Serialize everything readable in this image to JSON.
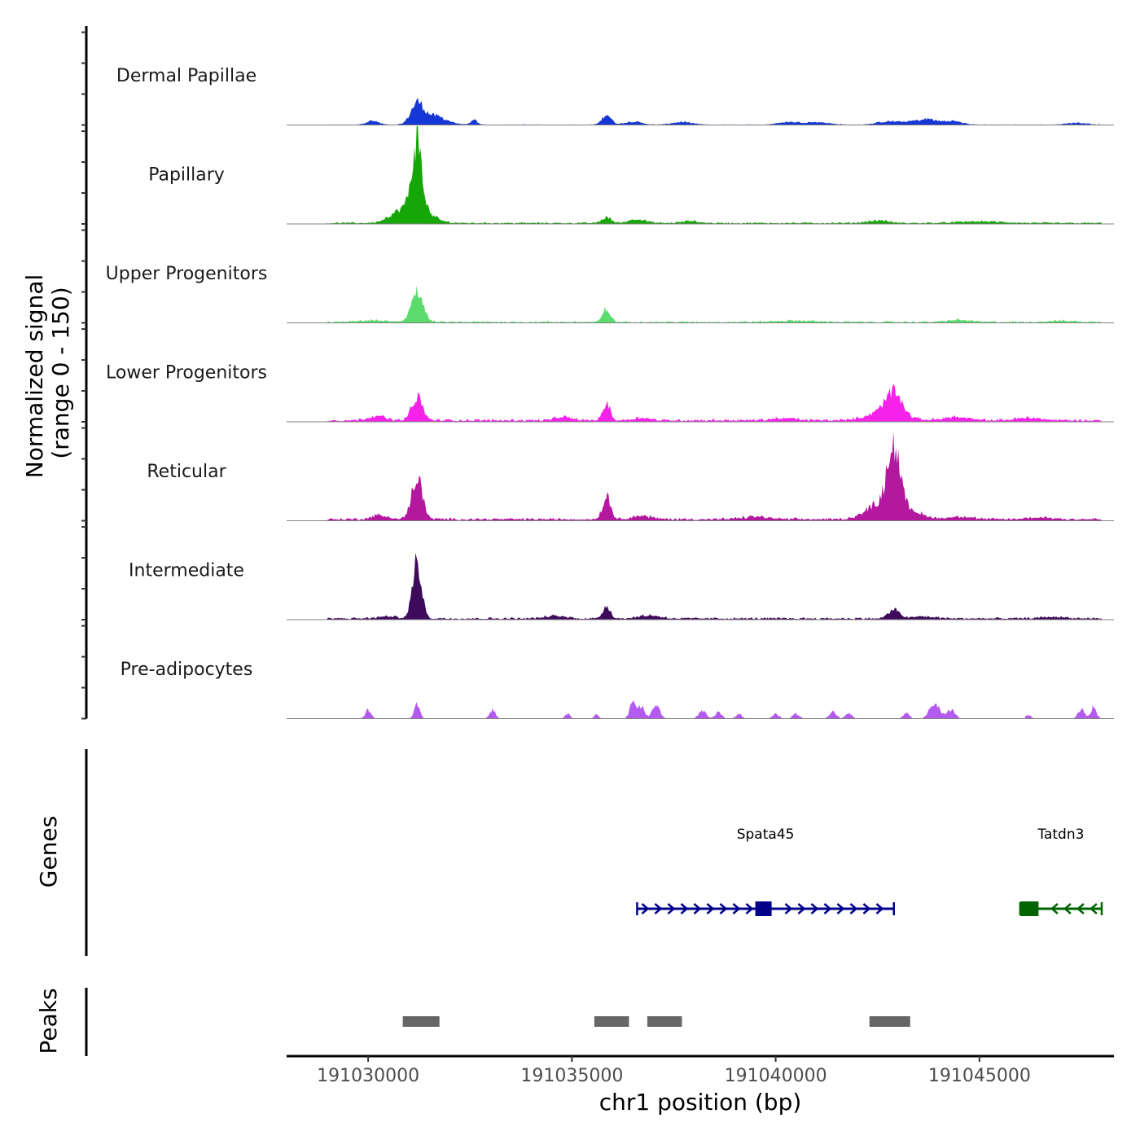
{
  "chart_data": {
    "type": "area",
    "title": "",
    "region": {
      "chromosome": "chr1",
      "start": 191028000,
      "end": 191048300
    },
    "coverage": {
      "ylabel_line1": "Normalized signal",
      "ylabel_line2": "(range 0 - 150)",
      "ymax": 150,
      "x_start": 191029000,
      "x_end": 191048000,
      "tracks": [
        {
          "name": "Dermal Papillae",
          "color": "#1637D6",
          "baseline": 0.5,
          "peaks": [
            [
              191031200,
              30,
              150
            ],
            [
              191031600,
              14,
              300
            ],
            [
              191035850,
              16,
              110
            ],
            [
              191030100,
              6,
              150
            ],
            [
              191032600,
              7,
              80
            ],
            [
              191036500,
              5,
              200
            ],
            [
              191037700,
              4,
              250
            ],
            [
              191042800,
              5,
              300
            ],
            [
              191043500,
              6,
              250
            ],
            [
              191044300,
              6,
              250
            ],
            [
              191043800,
              5,
              150
            ],
            [
              191040300,
              4,
              250
            ],
            [
              191041000,
              4,
              300
            ],
            [
              191047400,
              3,
              250
            ]
          ]
        },
        {
          "name": "Papillary",
          "color": "#17A608",
          "baseline": 1.5,
          "peaks": [
            [
              191031200,
              100,
              110
            ],
            [
              191031100,
              32,
              350
            ],
            [
              191035850,
              9,
              110
            ],
            [
              191036600,
              6,
              200
            ],
            [
              191037900,
              3,
              200
            ],
            [
              191042500,
              4,
              250
            ],
            [
              191030500,
              3,
              150
            ],
            [
              191045000,
              2.5,
              500
            ]
          ]
        },
        {
          "name": "Upper Progenitors",
          "color": "#5BDB6C",
          "baseline": 1.5,
          "peaks": [
            [
              191031200,
              48,
              140
            ],
            [
              191035850,
              21,
              90
            ],
            [
              191030100,
              2.5,
              300
            ],
            [
              191040500,
              2,
              500
            ],
            [
              191044500,
              3,
              300
            ],
            [
              191047000,
              2,
              300
            ]
          ]
        },
        {
          "name": "Lower Progenitors",
          "color": "#F622E9",
          "baseline": 2.5,
          "peaks": [
            [
              191031200,
              36,
              130
            ],
            [
              191035850,
              27,
              90
            ],
            [
              191042900,
              32,
              190
            ],
            [
              191042700,
              14,
              400
            ],
            [
              191030200,
              7,
              200
            ],
            [
              191034800,
              5,
              200
            ],
            [
              191036700,
              4,
              200
            ],
            [
              191040200,
              3,
              300
            ],
            [
              191044400,
              5,
              300
            ],
            [
              191046200,
              4,
              300
            ]
          ]
        },
        {
          "name": "Reticular",
          "color": "#B4189F",
          "baseline": 2.5,
          "peaks": [
            [
              191031200,
              66,
              130
            ],
            [
              191035850,
              34,
              100
            ],
            [
              191042900,
              96,
              150
            ],
            [
              191042600,
              25,
              350
            ],
            [
              191043300,
              12,
              300
            ],
            [
              191030300,
              6,
              200
            ],
            [
              191036700,
              5,
              250
            ],
            [
              191039500,
              4,
              300
            ],
            [
              191044500,
              4,
              300
            ],
            [
              191046500,
              3,
              300
            ]
          ]
        },
        {
          "name": "Intermediate",
          "color": "#3E0B5C",
          "baseline": 2,
          "peaks": [
            [
              191031200,
              88,
              110
            ],
            [
              191035850,
              20,
              90
            ],
            [
              191042900,
              14,
              130
            ],
            [
              191030500,
              3,
              250
            ],
            [
              191034600,
              4,
              250
            ],
            [
              191036900,
              5,
              250
            ],
            [
              191043600,
              3,
              300
            ],
            [
              191046800,
              2.5,
              300
            ]
          ]
        },
        {
          "name": "Pre-adipocytes",
          "color": "#B55AF0",
          "baseline": 0,
          "peaks": [
            [
              191030000,
              14,
              70
            ],
            [
              191031200,
              22,
              70
            ],
            [
              191033050,
              14,
              70
            ],
            [
              191034900,
              8,
              60
            ],
            [
              191036500,
              24,
              80
            ],
            [
              191036700,
              18,
              90
            ],
            [
              191037100,
              16,
              80
            ],
            [
              191038200,
              12,
              90
            ],
            [
              191038600,
              10,
              80
            ],
            [
              191039100,
              8,
              70
            ],
            [
              191040000,
              7,
              80
            ],
            [
              191040500,
              8,
              80
            ],
            [
              191041400,
              10,
              90
            ],
            [
              191041800,
              8,
              80
            ],
            [
              191043200,
              8,
              80
            ],
            [
              191043900,
              22,
              130
            ],
            [
              191044300,
              14,
              100
            ],
            [
              191047500,
              14,
              80
            ],
            [
              191047800,
              18,
              70
            ],
            [
              191046200,
              6,
              60
            ],
            [
              191035600,
              6,
              60
            ],
            [
              191037000,
              10,
              60
            ]
          ]
        }
      ]
    },
    "genes": {
      "ylabel": "Genes",
      "items": [
        {
          "name": "Spata45",
          "start": 191036600,
          "end": 191042900,
          "strand": "+",
          "color": "#00008B",
          "exon": [
            191039500,
            191039900
          ]
        },
        {
          "name": "Tatdn3",
          "start": 191046000,
          "end": 191048000,
          "strand": "-",
          "color": "#006400",
          "exon": [
            191046000,
            191046450
          ]
        }
      ]
    },
    "peaks": {
      "ylabel": "Peaks",
      "color": "#666666",
      "items": [
        [
          191030850,
          191031750
        ],
        [
          191035550,
          191036400
        ],
        [
          191036850,
          191037700
        ],
        [
          191042300,
          191043300
        ]
      ]
    },
    "xaxis": {
      "title": "chr1 position (bp)",
      "ticks": [
        191030000,
        191035000,
        191040000,
        191045000
      ],
      "tick_labels": [
        "191030000",
        "191035000",
        "191040000",
        "191045000"
      ]
    }
  }
}
